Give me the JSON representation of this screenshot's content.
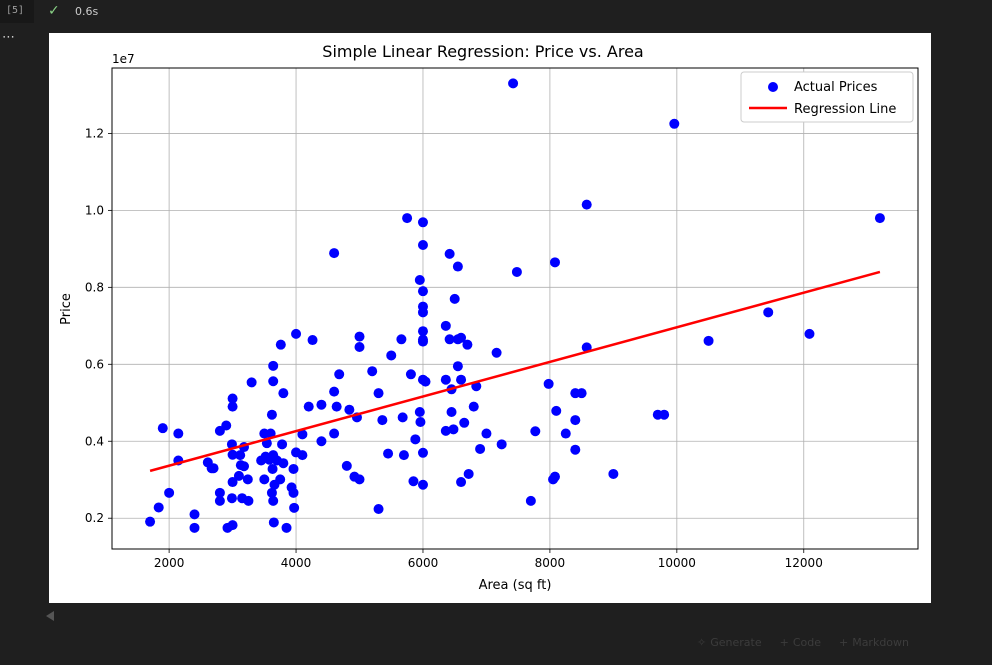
{
  "cell": {
    "execution_count": "[5]",
    "duration": "0.6s",
    "check_icon": "✓",
    "more_icon": "⋯"
  },
  "toolbar": {
    "generate_label": "Generate",
    "code_label": "Code",
    "markdown_label": "Markdown"
  },
  "colors": {
    "points": "#0000ff",
    "line": "#ff0000",
    "accent_check": "#89d185"
  },
  "chart_data": {
    "type": "scatter",
    "title": "Simple Linear Regression: Price vs. Area",
    "xlabel": "Area (sq ft)",
    "ylabel": "Price",
    "offset_text": "1e7",
    "xlim": [
      1100,
      13800
    ],
    "ylim": [
      1200000,
      13700000
    ],
    "xticks": [
      2000,
      4000,
      6000,
      8000,
      10000,
      12000
    ],
    "xtick_labels": [
      "2000",
      "4000",
      "6000",
      "8000",
      "10000",
      "12000"
    ],
    "yticks": [
      2000000,
      4000000,
      6000000,
      8000000,
      10000000,
      12000000
    ],
    "ytick_labels": [
      "0.2",
      "0.4",
      "0.6",
      "0.8",
      "1.0",
      "1.2"
    ],
    "grid": true,
    "legend_position": "top-right",
    "series": [
      {
        "name": "Actual Prices",
        "kind": "scatter",
        "color": "#0000ff",
        "points": [
          [
            7420,
            13300000
          ],
          [
            9960,
            12250000
          ],
          [
            8580,
            10150000
          ],
          [
            13200,
            9800000
          ],
          [
            5750,
            9800000
          ],
          [
            6000,
            9690000
          ],
          [
            6000,
            9100000
          ],
          [
            4600,
            8890000
          ],
          [
            6420,
            8870000
          ],
          [
            6550,
            8540000
          ],
          [
            8080,
            8650000
          ],
          [
            7480,
            8400000
          ],
          [
            5950,
            8190000
          ],
          [
            6000,
            7900000
          ],
          [
            6500,
            7700000
          ],
          [
            6000,
            7500000
          ],
          [
            6000,
            7350000
          ],
          [
            11440,
            7350000
          ],
          [
            6360,
            7000000
          ],
          [
            6000,
            6860000
          ],
          [
            12090,
            6790000
          ],
          [
            4000,
            6790000
          ],
          [
            6600,
            6690000
          ],
          [
            6550,
            6650000
          ],
          [
            5660,
            6650000
          ],
          [
            6420,
            6650000
          ],
          [
            6000,
            6640000
          ],
          [
            4260,
            6630000
          ],
          [
            10500,
            6610000
          ],
          [
            6000,
            6590000
          ],
          [
            6700,
            6510000
          ],
          [
            3760,
            6510000
          ],
          [
            5000,
            6450000
          ],
          [
            8580,
            6440000
          ],
          [
            5000,
            6720000
          ],
          [
            7160,
            6300000
          ],
          [
            5500,
            6230000
          ],
          [
            3640,
            5960000
          ],
          [
            6550,
            5950000
          ],
          [
            4680,
            5740000
          ],
          [
            6000,
            5600000
          ],
          [
            6360,
            5600000
          ],
          [
            5810,
            5740000
          ],
          [
            5200,
            5820000
          ],
          [
            6840,
            5430000
          ],
          [
            7980,
            5490000
          ],
          [
            3300,
            5530000
          ],
          [
            3640,
            5560000
          ],
          [
            6040,
            5550000
          ],
          [
            6600,
            5600000
          ],
          [
            4600,
            5290000
          ],
          [
            3800,
            5250000
          ],
          [
            6450,
            5350000
          ],
          [
            5300,
            5250000
          ],
          [
            8500,
            5250000
          ],
          [
            8400,
            5250000
          ],
          [
            6800,
            4900000
          ],
          [
            3000,
            5110000
          ],
          [
            3000,
            4900000
          ],
          [
            4200,
            4900000
          ],
          [
            4400,
            4950000
          ],
          [
            4640,
            4900000
          ],
          [
            4840,
            4820000
          ],
          [
            5950,
            4760000
          ],
          [
            6450,
            4760000
          ],
          [
            8100,
            4790000
          ],
          [
            3620,
            4690000
          ],
          [
            5680,
            4620000
          ],
          [
            9800,
            4690000
          ],
          [
            9700,
            4690000
          ],
          [
            4960,
            4620000
          ],
          [
            5960,
            4500000
          ],
          [
            5360,
            4550000
          ],
          [
            8400,
            4550000
          ],
          [
            6650,
            4480000
          ],
          [
            6360,
            4270000
          ],
          [
            6480,
            4310000
          ],
          [
            7770,
            4260000
          ],
          [
            8250,
            4200000
          ],
          [
            4100,
            4180000
          ],
          [
            1900,
            4340000
          ],
          [
            1700,
            1910000
          ],
          [
            2145,
            4200000
          ],
          [
            4600,
            4200000
          ],
          [
            3500,
            4200000
          ],
          [
            3600,
            4200000
          ],
          [
            2800,
            4270000
          ],
          [
            2900,
            4410000
          ],
          [
            7000,
            4200000
          ],
          [
            5880,
            4050000
          ],
          [
            4400,
            4000000
          ],
          [
            7240,
            3920000
          ],
          [
            3540,
            3950000
          ],
          [
            3780,
            3920000
          ],
          [
            6000,
            3700000
          ],
          [
            2990,
            3920000
          ],
          [
            4000,
            3710000
          ],
          [
            5450,
            3680000
          ],
          [
            5700,
            3640000
          ],
          [
            6900,
            3800000
          ],
          [
            8400,
            3780000
          ],
          [
            3180,
            3850000
          ],
          [
            3120,
            3640000
          ],
          [
            4100,
            3640000
          ],
          [
            3450,
            3500000
          ],
          [
            3800,
            3430000
          ],
          [
            3640,
            3640000
          ],
          [
            2145,
            3500000
          ],
          [
            2610,
            3450000
          ],
          [
            3000,
            3650000
          ],
          [
            3130,
            3380000
          ],
          [
            3180,
            3350000
          ],
          [
            2700,
            3300000
          ],
          [
            3630,
            3280000
          ],
          [
            3960,
            3280000
          ],
          [
            6720,
            3150000
          ],
          [
            9000,
            3150000
          ],
          [
            3100,
            3100000
          ],
          [
            8080,
            3080000
          ],
          [
            8050,
            3010000
          ],
          [
            5000,
            3010000
          ],
          [
            4800,
            3360000
          ],
          [
            2000,
            2660000
          ],
          [
            2800,
            2660000
          ],
          [
            3620,
            2660000
          ],
          [
            3960,
            2660000
          ],
          [
            3930,
            2800000
          ],
          [
            3660,
            2870000
          ],
          [
            3000,
            2940000
          ],
          [
            6000,
            2870000
          ],
          [
            6600,
            2940000
          ],
          [
            5850,
            2960000
          ],
          [
            3750,
            3010000
          ],
          [
            3240,
            3010000
          ],
          [
            3500,
            3010000
          ],
          [
            3150,
            2520000
          ],
          [
            3250,
            2450000
          ],
          [
            2990,
            2520000
          ],
          [
            3640,
            2450000
          ],
          [
            2800,
            2450000
          ],
          [
            3970,
            2270000
          ],
          [
            5300,
            2240000
          ],
          [
            7700,
            2450000
          ],
          [
            1836,
            2280000
          ],
          [
            2400,
            2100000
          ],
          [
            2920,
            1750000
          ],
          [
            3000,
            1820000
          ],
          [
            2400,
            1750000
          ],
          [
            3650,
            1890000
          ],
          [
            3850,
            1750000
          ],
          [
            4920,
            3080000
          ],
          [
            3580,
            3520000
          ],
          [
            3700,
            3500000
          ],
          [
            2670,
            3300000
          ],
          [
            3520,
            3600000
          ]
        ]
      },
      {
        "name": "Regression Line",
        "kind": "line",
        "color": "#ff0000",
        "points": [
          [
            1700,
            3230000
          ],
          [
            13200,
            8400000
          ]
        ]
      }
    ]
  }
}
